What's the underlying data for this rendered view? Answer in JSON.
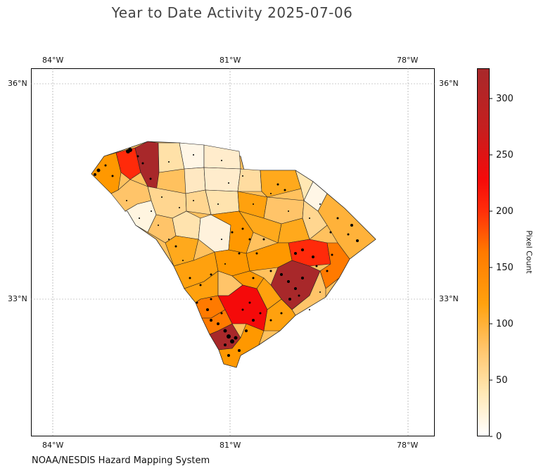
{
  "title": "Year to Date Activity 2025-07-06",
  "footer": "NOAA/NESDIS Hazard Mapping System",
  "axes": {
    "lon_top": [
      "84°W",
      "81°W",
      "78°W"
    ],
    "lon_bottom": [
      "84°W",
      "81°W",
      "78°W"
    ],
    "lat_left": [
      "36°N",
      "33°N"
    ],
    "lat_right": [
      "36°N",
      "33°N"
    ]
  },
  "colorbar": {
    "label": "Pixel Count",
    "ticks": [
      "0",
      "50",
      "100",
      "150",
      "200",
      "250",
      "300"
    ],
    "min": 0,
    "max": 325
  }
}
